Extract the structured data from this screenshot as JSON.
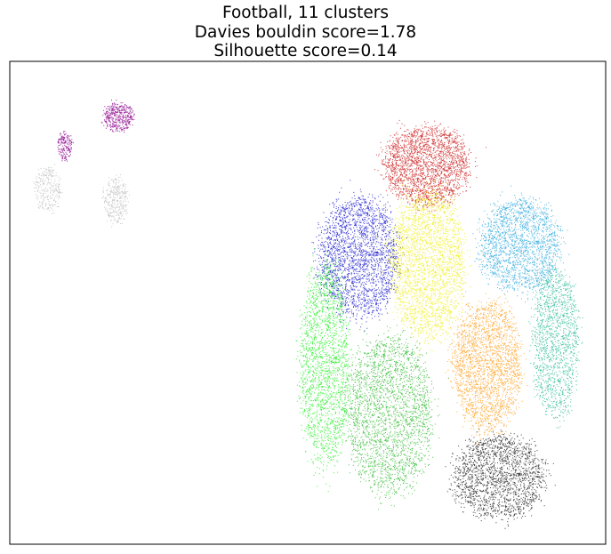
{
  "chart_data": {
    "type": "scatter",
    "title": [
      "Football, 11 clusters",
      "Davies bouldin score=1.78",
      "Silhouette score=0.14"
    ],
    "xlabel": "",
    "ylabel": "",
    "xticks": "none",
    "yticks": "none",
    "grid": false,
    "legend": "none",
    "marker_size": "tiny",
    "xlim": [
      0,
      100
    ],
    "ylim": [
      0,
      100
    ],
    "series": [
      {
        "cluster": "purple",
        "color": "#8b008b",
        "points": 600,
        "regions": [
          {
            "center": [
              18.2,
              88.5
            ],
            "radius": [
              2.6,
              3.2
            ],
            "weight": 0.7
          },
          {
            "center": [
              9.2,
              82.5
            ],
            "radius": [
              1.3,
              3.0
            ],
            "weight": 0.3
          }
        ]
      },
      {
        "cluster": "silver",
        "color": "#c0c0c0",
        "points": 600,
        "regions": [
          {
            "center": [
              17.7,
              71.5
            ],
            "radius": [
              2.2,
              5.0
            ],
            "weight": 0.55
          },
          {
            "center": [
              6.3,
              73.5
            ],
            "radius": [
              2.3,
              5.0
            ],
            "weight": 0.45
          }
        ]
      },
      {
        "cluster": "red",
        "color": "#cc1f1f",
        "points": 2300,
        "regions": [
          {
            "center": [
              69.8,
              78.5
            ],
            "radius": [
              7.5,
              8.5
            ],
            "weight": 1.0
          }
        ]
      },
      {
        "cluster": "blue",
        "color": "#1a1acc",
        "points": 2400,
        "regions": [
          {
            "center": [
              58.5,
              59.5
            ],
            "radius": [
              7.0,
              13.0
            ],
            "weight": 1.0
          }
        ]
      },
      {
        "cluster": "yellow",
        "color": "#f0f020",
        "points": 2800,
        "regions": [
          {
            "center": [
              70.0,
              58.0
            ],
            "radius": [
              6.5,
              16.0
            ],
            "weight": 1.0
          }
        ]
      },
      {
        "cluster": "sky blue",
        "color": "#33aadd",
        "points": 2000,
        "regions": [
          {
            "center": [
              85.5,
              62.0
            ],
            "radius": [
              7.0,
              10.0
            ],
            "weight": 1.0
          }
        ]
      },
      {
        "cluster": "orange",
        "color": "#ffa020",
        "points": 2300,
        "regions": [
          {
            "center": [
              80.0,
              37.0
            ],
            "radius": [
              6.0,
              14.0
            ],
            "weight": 1.0
          }
        ]
      },
      {
        "cluster": "teal",
        "color": "#2bbb99",
        "points": 1500,
        "regions": [
          {
            "center": [
              91.5,
              42.0
            ],
            "radius": [
              4.0,
              16.0
            ],
            "weight": 1.0
          }
        ]
      },
      {
        "cluster": "bright green",
        "color": "#22ee22",
        "points": 2000,
        "regions": [
          {
            "center": [
              52.8,
              37.0
            ],
            "radius": [
              4.3,
              22.0
            ],
            "weight": 1.0
          }
        ]
      },
      {
        "cluster": "green",
        "color": "#33bb33",
        "points": 2600,
        "regions": [
          {
            "center": [
              63.5,
              27.0
            ],
            "radius": [
              7.5,
              17.0
            ],
            "weight": 1.0
          }
        ]
      },
      {
        "cluster": "black",
        "color": "#222222",
        "points": 1900,
        "regions": [
          {
            "center": [
              82.0,
              14.0
            ],
            "radius": [
              8.0,
              9.0
            ],
            "weight": 1.0
          }
        ]
      }
    ]
  }
}
